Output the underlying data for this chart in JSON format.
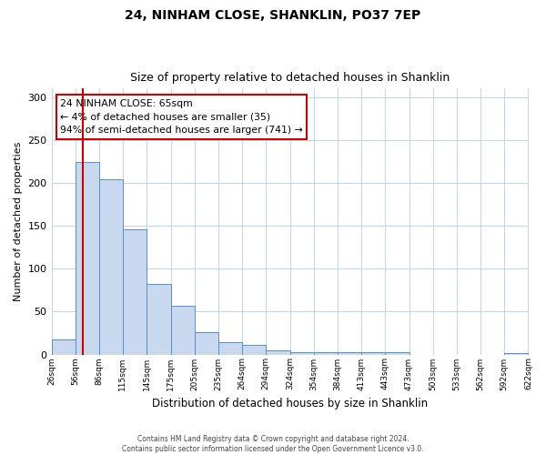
{
  "title1": "24, NINHAM CLOSE, SHANKLIN, PO37 7EP",
  "title2": "Size of property relative to detached houses in Shanklin",
  "xlabel": "Distribution of detached houses by size in Shanklin",
  "ylabel": "Number of detached properties",
  "footnote": "Contains HM Land Registry data © Crown copyright and database right 2024.\nContains public sector information licensed under the Open Government Licence v3.0.",
  "bar_left_edges": [
    26,
    56,
    86,
    115,
    145,
    175,
    205,
    235,
    264,
    294,
    324,
    354,
    384,
    413,
    443,
    473,
    503,
    533,
    562,
    592
  ],
  "bar_widths": [
    30,
    30,
    29,
    30,
    30,
    30,
    30,
    29,
    30,
    30,
    30,
    30,
    29,
    30,
    30,
    30,
    30,
    29,
    30,
    30
  ],
  "bar_heights": [
    17,
    224,
    204,
    146,
    82,
    57,
    26,
    14,
    11,
    5,
    3,
    3,
    3,
    3,
    3,
    0,
    0,
    0,
    0,
    2
  ],
  "bar_color": "#c8d8ef",
  "bar_edgecolor": "#5b8ec4",
  "property_line_x": 65,
  "annotation_text": "24 NINHAM CLOSE: 65sqm\n← 4% of detached houses are smaller (35)\n94% of semi-detached houses are larger (741) →",
  "annotation_box_edgecolor": "#cc0000",
  "annotation_line_color": "#cc0000",
  "ylim": [
    0,
    310
  ],
  "yticks": [
    0,
    50,
    100,
    150,
    200,
    250,
    300
  ],
  "xlim_left": 26,
  "xlim_right": 622,
  "tick_labels": [
    "26sqm",
    "56sqm",
    "86sqm",
    "115sqm",
    "145sqm",
    "175sqm",
    "205sqm",
    "235sqm",
    "264sqm",
    "294sqm",
    "324sqm",
    "354sqm",
    "384sqm",
    "413sqm",
    "443sqm",
    "473sqm",
    "503sqm",
    "533sqm",
    "562sqm",
    "592sqm",
    "622sqm"
  ],
  "tick_positions": [
    26,
    56,
    86,
    115,
    145,
    175,
    205,
    235,
    264,
    294,
    324,
    354,
    384,
    413,
    443,
    473,
    503,
    533,
    562,
    592,
    622
  ],
  "background_color": "#ffffff",
  "grid_color": "#c8d4e8"
}
